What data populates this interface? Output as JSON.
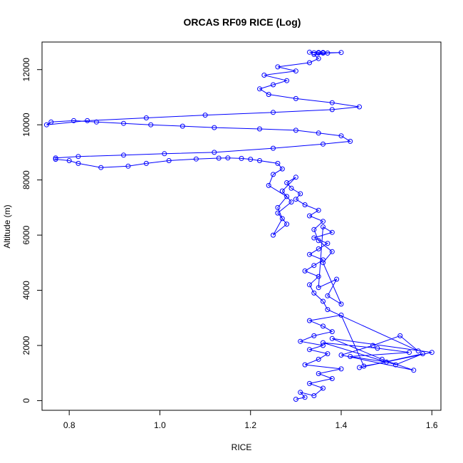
{
  "chart_data": {
    "type": "scatter",
    "title": "ORCAS RF09 RICE (Log)",
    "xlabel": "RICE",
    "ylabel": "Altitude (m)",
    "xlim": [
      0.74,
      1.62
    ],
    "ylim": [
      -350,
      13000
    ],
    "xticks": [
      0.8,
      1.0,
      1.2,
      1.4,
      1.6
    ],
    "xtick_labels": [
      "0.8",
      "1.0",
      "1.2",
      "1.4",
      "1.6"
    ],
    "yticks": [
      0,
      2000,
      4000,
      6000,
      8000,
      10000,
      12000
    ],
    "ytick_labels": [
      "0",
      "2000",
      "4000",
      "6000",
      "8000",
      "10000",
      "12000"
    ],
    "grid": false,
    "legend": "none",
    "marker": "open-circle",
    "connected": true,
    "color": "#0000ff",
    "series": [
      {
        "x": [
          1.3,
          1.32,
          1.31,
          1.34,
          1.36,
          1.33,
          1.38,
          1.35,
          1.4,
          1.32,
          1.35,
          1.37,
          1.33,
          1.36,
          1.31,
          1.34,
          1.38,
          1.36,
          1.33,
          1.4,
          1.45,
          1.5,
          1.42,
          1.55,
          1.48,
          1.36,
          1.52,
          1.58,
          1.44,
          1.6,
          1.38,
          1.49,
          1.56,
          1.4,
          1.47,
          1.53,
          1.57,
          1.37,
          1.36,
          1.34,
          1.33,
          1.35,
          1.32,
          1.34,
          1.36,
          1.33,
          1.35,
          1.37,
          1.34,
          1.38,
          1.36,
          1.35,
          1.39,
          1.37,
          1.4,
          1.36,
          1.38,
          1.35,
          1.34,
          1.36,
          1.33,
          1.35,
          1.32,
          1.3,
          1.31,
          1.29,
          1.28,
          1.3,
          1.27,
          1.29,
          1.26,
          1.28,
          1.25,
          1.27,
          1.26,
          1.28,
          1.24,
          1.25,
          1.27,
          1.26,
          1.22,
          1.2,
          1.18,
          1.15,
          1.13,
          1.08,
          1.02,
          0.97,
          0.93,
          0.87,
          0.82,
          0.8,
          0.77,
          0.77,
          0.82,
          0.92,
          1.01,
          1.12,
          1.25,
          1.36,
          1.42,
          1.4,
          1.35,
          1.3,
          1.22,
          1.12,
          1.05,
          0.98,
          0.92,
          0.86,
          0.81,
          0.76,
          0.75,
          0.84,
          0.97,
          1.1,
          1.25,
          1.38,
          1.44,
          1.38,
          1.3,
          1.24,
          1.22,
          1.25,
          1.28,
          1.23,
          1.3,
          1.26,
          1.33,
          1.35,
          1.34,
          1.37,
          1.4,
          1.36,
          1.33,
          1.35,
          1.36,
          1.34,
          1.36,
          1.35
        ],
        "y": [
          50,
          120,
          300,
          180,
          450,
          620,
          800,
          980,
          1150,
          1300,
          1500,
          1700,
          1850,
          2000,
          2150,
          2350,
          2500,
          2700,
          2900,
          3100,
          1250,
          1400,
          1600,
          1750,
          1900,
          2100,
          1300,
          1700,
          1200,
          1750,
          2250,
          1500,
          1100,
          1650,
          2000,
          2350,
          1800,
          3300,
          3600,
          3900,
          4200,
          4500,
          4700,
          4900,
          5100,
          5300,
          5500,
          5700,
          5900,
          6100,
          6300,
          4100,
          4400,
          3800,
          3500,
          5000,
          5400,
          5800,
          6200,
          6500,
          6700,
          6900,
          7100,
          7300,
          7500,
          7700,
          7900,
          8100,
          7600,
          7200,
          6800,
          6400,
          6000,
          6600,
          7000,
          7400,
          7800,
          8200,
          8400,
          8600,
          8700,
          8750,
          8780,
          8800,
          8790,
          8760,
          8700,
          8600,
          8500,
          8450,
          8600,
          8700,
          8750,
          8800,
          8850,
          8900,
          8950,
          9000,
          9150,
          9300,
          9400,
          9600,
          9700,
          9800,
          9850,
          9900,
          9950,
          10000,
          10050,
          10100,
          10150,
          10100,
          10000,
          10150,
          10250,
          10350,
          10450,
          10550,
          10650,
          10800,
          10950,
          11100,
          11300,
          11450,
          11600,
          11800,
          11950,
          12100,
          12250,
          12400,
          12550,
          12600,
          12620,
          12610,
          12630,
          12600,
          12620,
          12610,
          12600,
          12620
        ]
      }
    ]
  }
}
